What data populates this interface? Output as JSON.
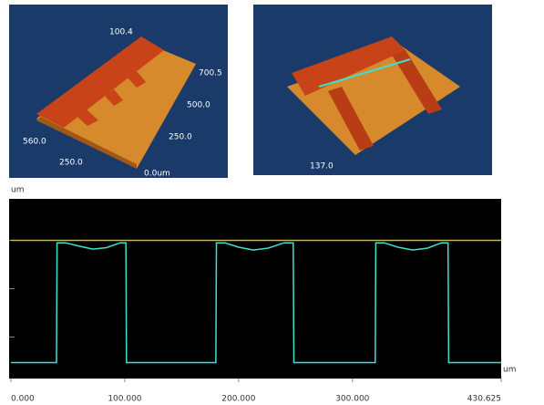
{
  "images": [
    {
      "labels": [
        "100.4",
        "700.5",
        "500.0",
        "250.0",
        "560.0",
        "250.0",
        "0.0um"
      ]
    },
    {
      "labels": [
        "137.0"
      ]
    }
  ],
  "chart_data": {
    "type": "line",
    "y_unit": "um",
    "x_unit": "um",
    "xlim": [
      0,
      430.625
    ],
    "xticks": [
      {
        "value": 0,
        "label": "0.000"
      },
      {
        "value": 100,
        "label": "100.000"
      },
      {
        "value": 200,
        "label": "200.000"
      },
      {
        "value": 300,
        "label": "300.000"
      },
      {
        "value": 430.625,
        "label": "430.625"
      }
    ],
    "ylim": [
      -0.86,
      2.86
    ],
    "yticks": [
      0,
      1,
      2
    ],
    "series": [
      {
        "color": "#c8c800",
        "x": [
          0,
          430.625
        ],
        "values": [
          2.0,
          2.0
        ]
      },
      {
        "color": "#40e0d0",
        "x": [
          0,
          40,
          40.5,
          48,
          60,
          72,
          84,
          96,
          101,
          101.5,
          180,
          180.5,
          188,
          200,
          213,
          226,
          240,
          248,
          248.5,
          320,
          320.5,
          328,
          340,
          353,
          366,
          378,
          384,
          384.5,
          430.6
        ],
        "values": [
          -0.53,
          -0.53,
          1.95,
          1.95,
          1.88,
          1.82,
          1.85,
          1.95,
          1.95,
          -0.53,
          -0.53,
          1.95,
          1.95,
          1.86,
          1.8,
          1.84,
          1.95,
          1.95,
          -0.53,
          -0.53,
          1.95,
          1.95,
          1.86,
          1.8,
          1.84,
          1.95,
          1.95,
          -0.53,
          -0.53
        ]
      }
    ]
  }
}
